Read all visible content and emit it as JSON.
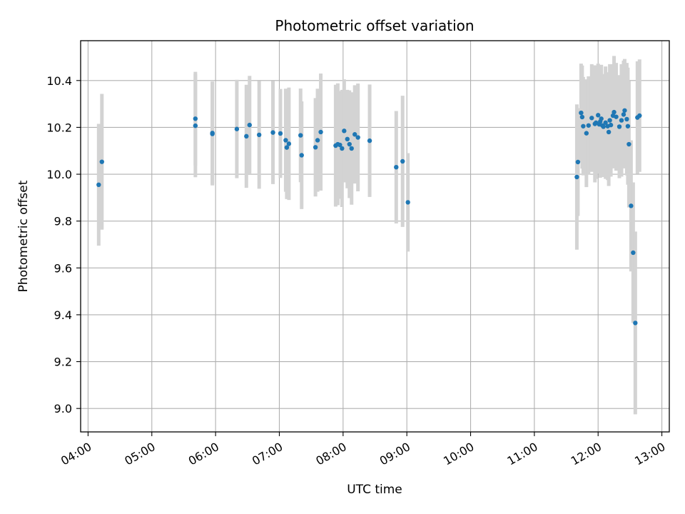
{
  "chart_data": {
    "type": "scatter",
    "title": "Photometric offset variation",
    "xlabel": "UTC time",
    "ylabel": "Photometric offset",
    "xlim": [
      "03:53",
      "13:07"
    ],
    "ylim": [
      8.9,
      10.57
    ],
    "grid": true,
    "x_ticks": [
      "04:00",
      "05:00",
      "06:00",
      "07:00",
      "08:00",
      "09:00",
      "10:00",
      "11:00",
      "12:00",
      "13:00"
    ],
    "y_ticks": [
      "9.0",
      "9.2",
      "9.4",
      "9.6",
      "9.8",
      "10.0",
      "10.2",
      "10.4"
    ],
    "point_color": "#1f77b4",
    "errorbar_color": "#d3d3d3",
    "series": [
      {
        "x": [
          "04:10",
          "04:13",
          "05:41",
          "05:41",
          "05:57",
          "05:57",
          "06:20",
          "06:29",
          "06:32",
          "06:41",
          "06:54",
          "07:01",
          "07:06",
          "07:07",
          "07:09",
          "07:20",
          "07:21",
          "07:34",
          "07:36",
          "07:39",
          "07:53",
          "07:55",
          "07:57",
          "07:59",
          "08:01",
          "08:04",
          "08:06",
          "08:08",
          "08:11",
          "08:14",
          "08:25",
          "08:50",
          "08:56",
          "09:01",
          "11:40",
          "11:41",
          "11:44",
          "11:45",
          "11:46",
          "11:49",
          "11:51",
          "11:54",
          "11:57",
          "11:58",
          "12:00",
          "12:01",
          "12:02",
          "12:03",
          "12:04",
          "12:05",
          "12:07",
          "12:09",
          "12:10",
          "12:11",
          "12:12",
          "12:14",
          "12:15",
          "12:17",
          "12:20",
          "12:22",
          "12:24",
          "12:25",
          "12:27",
          "12:28",
          "12:29",
          "12:31",
          "12:33",
          "12:35",
          "12:37",
          "12:39"
        ],
        "y": [
          9.955,
          10.053,
          10.207,
          10.237,
          10.172,
          10.176,
          10.193,
          10.162,
          10.21,
          10.168,
          10.178,
          10.174,
          10.145,
          10.114,
          10.13,
          10.166,
          10.081,
          10.115,
          10.145,
          10.18,
          10.122,
          10.128,
          10.125,
          10.11,
          10.185,
          10.15,
          10.128,
          10.11,
          10.17,
          10.157,
          10.143,
          10.03,
          10.055,
          9.88,
          9.988,
          10.052,
          10.262,
          10.244,
          10.205,
          10.175,
          10.208,
          10.24,
          10.215,
          10.22,
          10.252,
          10.213,
          10.225,
          10.237,
          10.208,
          10.203,
          10.22,
          10.205,
          10.18,
          10.23,
          10.21,
          10.25,
          10.265,
          10.245,
          10.203,
          10.23,
          10.255,
          10.272,
          10.235,
          10.205,
          10.128,
          9.865,
          9.665,
          9.365,
          10.242,
          10.25
        ],
        "yerr": [
          0.26,
          0.29,
          0.22,
          0.2,
          0.22,
          0.22,
          0.21,
          0.22,
          0.21,
          0.23,
          0.22,
          0.19,
          0.22,
          0.22,
          0.24,
          0.2,
          0.23,
          0.21,
          0.22,
          0.25,
          0.26,
          0.26,
          0.23,
          0.25,
          0.22,
          0.21,
          0.23,
          0.24,
          0.21,
          0.23,
          0.24,
          0.24,
          0.28,
          0.21,
          0.31,
          0.23,
          0.21,
          0.22,
          0.21,
          0.23,
          0.21,
          0.23,
          0.25,
          0.24,
          0.22,
          0.21,
          0.24,
          0.23,
          0.22,
          0.2,
          0.24,
          0.23,
          0.23,
          0.24,
          0.22,
          0.22,
          0.24,
          0.23,
          0.22,
          0.24,
          0.23,
          0.22,
          0.24,
          0.25,
          0.27,
          0.28,
          0.3,
          0.39,
          0.24,
          0.24
        ]
      }
    ]
  }
}
